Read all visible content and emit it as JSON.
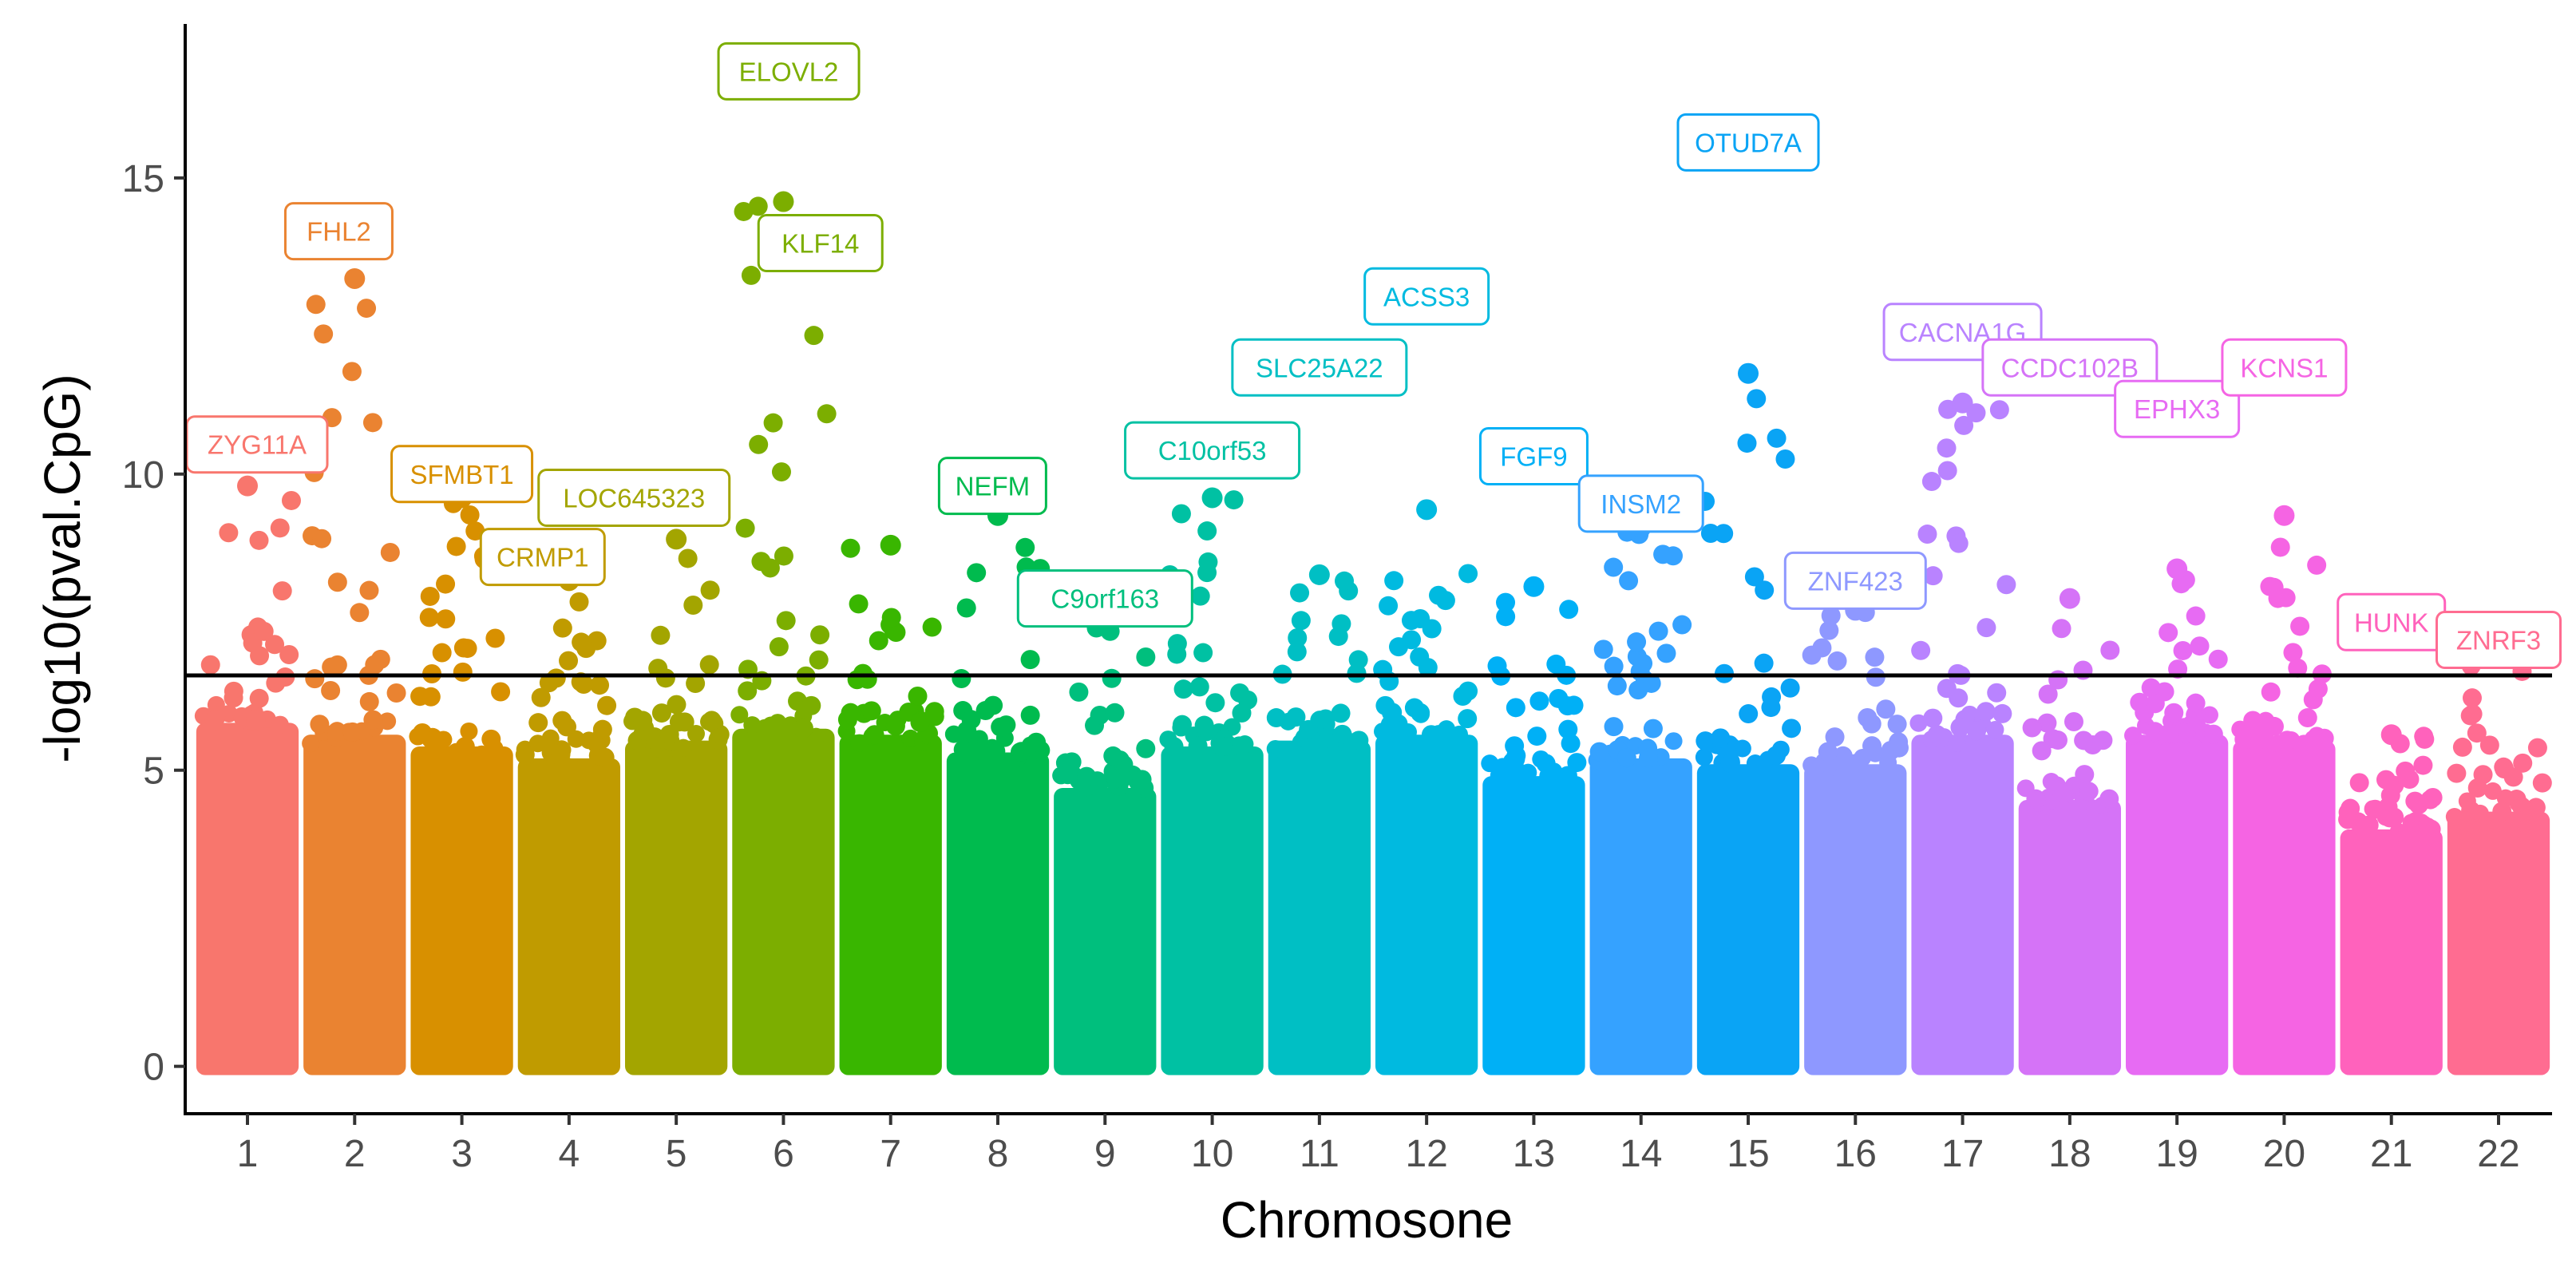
{
  "chart_data": {
    "type": "scatter",
    "subtype": "manhattan",
    "xlabel": "Chromosone",
    "ylabel": "-log10(pval.CpG)",
    "ylim": [
      -0.8,
      17.6
    ],
    "y_ticks": [
      0,
      5,
      10,
      15
    ],
    "threshold": 6.6,
    "chromosomes": [
      {
        "label": "1",
        "color": "#F8766D",
        "peak": 9.8,
        "dense_top": 5.8
      },
      {
        "label": "2",
        "color": "#EA8331",
        "peak": 13.3,
        "dense_top": 5.6
      },
      {
        "label": "3",
        "color": "#D89000",
        "peak": 9.6,
        "dense_top": 5.4
      },
      {
        "label": "4",
        "color": "#C09B00",
        "peak": 8.2,
        "dense_top": 5.2
      },
      {
        "label": "5",
        "color": "#A3A500",
        "peak": 8.9,
        "dense_top": 5.5
      },
      {
        "label": "6",
        "color": "#7CAE00",
        "peak": 14.6,
        "dense_top": 5.7
      },
      {
        "label": "7",
        "color": "#39B600",
        "peak": 8.8,
        "dense_top": 5.6
      },
      {
        "label": "8",
        "color": "#00BB4E",
        "peak": 9.3,
        "dense_top": 5.3
      },
      {
        "label": "9",
        "color": "#00BF7D",
        "peak": 7.6,
        "dense_top": 4.7
      },
      {
        "label": "10",
        "color": "#00C1A3",
        "peak": 9.6,
        "dense_top": 5.4
      },
      {
        "label": "11",
        "color": "#00BFC4",
        "peak": 8.3,
        "dense_top": 5.5
      },
      {
        "label": "12",
        "color": "#00BAE0",
        "peak": 9.4,
        "dense_top": 5.6
      },
      {
        "label": "13",
        "color": "#00B0F6",
        "peak": 8.1,
        "dense_top": 4.9
      },
      {
        "label": "14",
        "color": "#35A2FF",
        "peak": 9.1,
        "dense_top": 5.2
      },
      {
        "label": "15",
        "color": "#0AA4F5",
        "peak": 11.7,
        "dense_top": 5.1
      },
      {
        "label": "16",
        "color": "#8E98FF",
        "peak": 7.7,
        "dense_top": 5.1
      },
      {
        "label": "17",
        "color": "#B983FF",
        "peak": 11.2,
        "dense_top": 5.6
      },
      {
        "label": "18",
        "color": "#D573F7",
        "peak": 7.9,
        "dense_top": 4.5
      },
      {
        "label": "19",
        "color": "#E76BF3",
        "peak": 8.4,
        "dense_top": 5.6
      },
      {
        "label": "20",
        "color": "#F564E3",
        "peak": 9.3,
        "dense_top": 5.5
      },
      {
        "label": "21",
        "color": "#FF62BC",
        "peak": 5.6,
        "dense_top": 4.0
      },
      {
        "label": "22",
        "color": "#FF6C91",
        "peak": 7.0,
        "dense_top": 4.3
      }
    ],
    "annotations": [
      {
        "gene": "ZYG11A",
        "chr": 1,
        "pos": 0.35,
        "y": 9.8,
        "label_y": 10.5
      },
      {
        "gene": "FHL2",
        "chr": 2,
        "pos": 0.35,
        "y": 13.3,
        "label_y": 14.1
      },
      {
        "gene": "SFMBT1",
        "chr": 3,
        "pos": 0.5,
        "y": 9.6,
        "label_y": 10.0
      },
      {
        "gene": "CRMP1",
        "chr": 4,
        "pos": 0.25,
        "y": 8.2,
        "label_y": 8.6
      },
      {
        "gene": "LOC645323",
        "chr": 5,
        "pos": 0.1,
        "y": 8.9,
        "label_y": 9.6
      },
      {
        "gene": "ELOVL2",
        "chr": 6,
        "pos": 0.55,
        "y": 14.6,
        "label_y": 16.8
      },
      {
        "gene": "KLF14",
        "chr": 6,
        "pos": 0.85,
        "y": 14.6,
        "label_y": 13.9
      },
      {
        "gene": "NEFM",
        "chr": 8,
        "pos": 0.45,
        "y": 9.3,
        "label_y": 9.8
      },
      {
        "gene": "C9orf163",
        "chr": 9,
        "pos": 0.5,
        "y": 7.6,
        "label_y": 7.9
      },
      {
        "gene": "C10orf53",
        "chr": 10,
        "pos": 0.5,
        "y": 9.6,
        "label_y": 10.4
      },
      {
        "gene": "SLC25A22",
        "chr": 11,
        "pos": 0.5,
        "y": 8.3,
        "label_y": 11.8
      },
      {
        "gene": "ACSS3",
        "chr": 12,
        "pos": 0.5,
        "y": 9.4,
        "label_y": 13.0
      },
      {
        "gene": "FGF9",
        "chr": 13,
        "pos": 0.5,
        "y": 8.1,
        "label_y": 10.3
      },
      {
        "gene": "INSM2",
        "chr": 14,
        "pos": 0.5,
        "y": 9.1,
        "label_y": 9.5
      },
      {
        "gene": "OTUD7A",
        "chr": 15,
        "pos": 0.5,
        "y": 11.7,
        "label_y": 15.6
      },
      {
        "gene": "ZNF423",
        "chr": 16,
        "pos": 0.5,
        "y": 7.7,
        "label_y": 8.2
      },
      {
        "gene": "CACNA1G",
        "chr": 17,
        "pos": 0.5,
        "y": 11.2,
        "label_y": 12.4
      },
      {
        "gene": "CCDC102B",
        "chr": 18,
        "pos": 0.5,
        "y": 7.9,
        "label_y": 11.8
      },
      {
        "gene": "EPHX3",
        "chr": 19,
        "pos": 0.5,
        "y": 8.4,
        "label_y": 11.1
      },
      {
        "gene": "KCNS1",
        "chr": 20,
        "pos": 0.5,
        "y": 9.3,
        "label_y": 11.8
      },
      {
        "gene": "HUNK",
        "chr": 21,
        "pos": 0.5,
        "y": 5.6,
        "label_y": 7.5
      },
      {
        "gene": "ZNRF3",
        "chr": 22,
        "pos": 0.5,
        "y": 7.0,
        "label_y": 7.2
      }
    ],
    "legend": "none",
    "grid": false
  }
}
